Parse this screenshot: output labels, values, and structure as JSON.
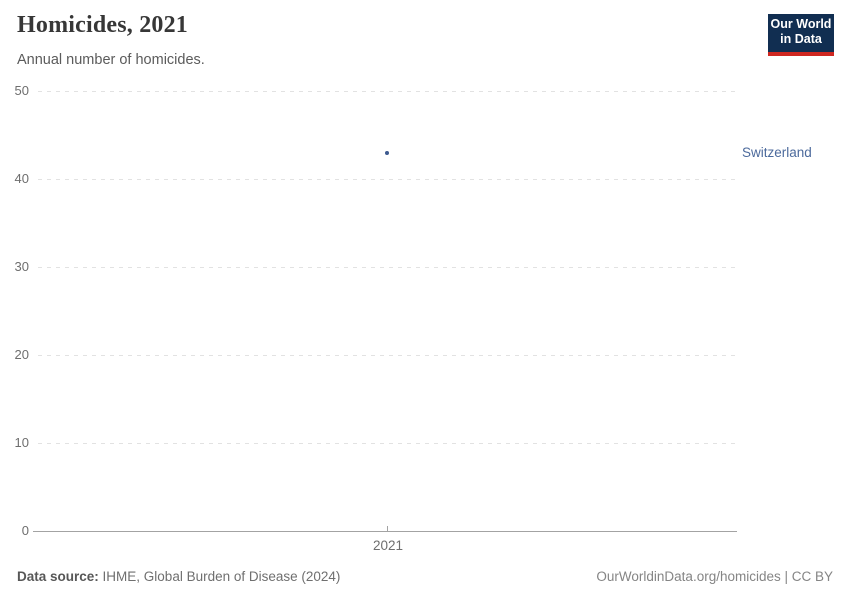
{
  "header": {
    "title": "Homicides, 2021",
    "subtitle": "Annual number of homicides.",
    "logo": {
      "line1": "Our World",
      "line2": "in Data"
    }
  },
  "chart_data": {
    "type": "scatter",
    "title": "Homicides, 2021",
    "x": [
      2021
    ],
    "xticks": [
      "2021"
    ],
    "series": [
      {
        "name": "Switzerland",
        "values": [
          43
        ]
      }
    ],
    "ylim": [
      0,
      50
    ],
    "yticks": [
      0,
      10,
      20,
      30,
      40,
      50
    ],
    "xlabel": "",
    "ylabel": "",
    "grid": "horizontal-dashed",
    "legend_position": "right-of-plot"
  },
  "footer": {
    "source_label": "Data source:",
    "source_text": "IHME, Global Burden of Disease (2024)",
    "credit": "OurWorldinData.org/homicides | CC BY"
  },
  "colors": {
    "point": "#3d5a8f",
    "entity_label": "#4c6a9c",
    "logo_bg": "#112e51",
    "logo_red": "#cf2720",
    "grid": "#e2e2e2",
    "axis": "#a3a3a3",
    "tick_text": "#6e6e6e"
  }
}
